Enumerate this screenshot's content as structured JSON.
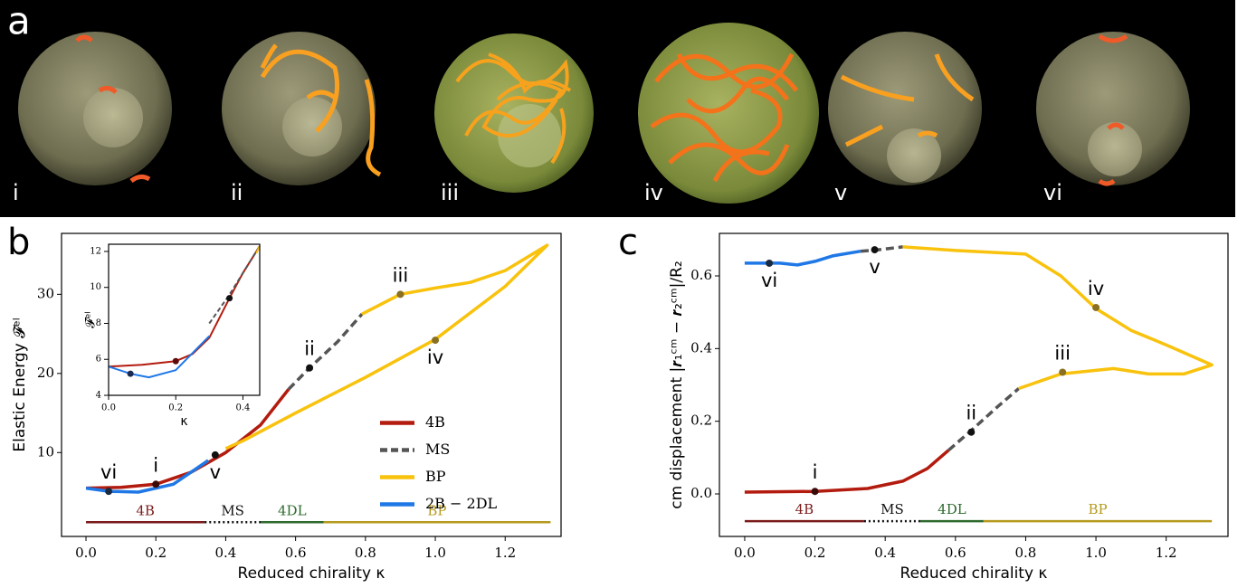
{
  "panel_a": {
    "label": "a",
    "image_labels": [
      "i",
      "ii",
      "iii",
      "iv",
      "v",
      "vi"
    ]
  },
  "chart_data": [
    {
      "type": "line",
      "panel_label": "b",
      "xlabel": "Reduced chirality κ",
      "ylabel": "Elastic Energy 𝓕ᵉˡ",
      "xlim": [
        -0.07,
        1.36
      ],
      "ylim": [
        -0.6,
        37.7
      ],
      "xticks": [
        {
          "value": 0,
          "label": "0.0"
        },
        0.2,
        0.4,
        0.6,
        0.8,
        {
          "value": 1,
          "label": "1.0"
        },
        1.2
      ],
      "yticks": [
        10,
        20,
        30
      ],
      "legend": "center right",
      "series": [
        {
          "name": "4B",
          "color": "#b31b0e",
          "style": "solid",
          "x": [
            0,
            0.1,
            0.2,
            0.3,
            0.4,
            0.5,
            0.58
          ],
          "values": [
            5.5,
            5.6,
            6.0,
            7.5,
            10,
            13.5,
            18
          ]
        },
        {
          "name": "MS",
          "color": "#555555",
          "style": "dashed",
          "x": [
            0.58,
            0.64,
            0.72,
            0.79
          ],
          "values": [
            18,
            20.7,
            24,
            27.5
          ]
        },
        {
          "name": "BP",
          "color": "#f8c20d",
          "style": "solid",
          "x": [
            0.79,
            0.9,
            1.0,
            1.1,
            1.2,
            1.32,
            1.2,
            1.0,
            0.8,
            0.6,
            0.45,
            0.4
          ],
          "values": [
            27.5,
            30,
            30.8,
            31.5,
            33,
            36.2,
            31,
            24.3,
            19.5,
            15,
            11.5,
            10.5
          ]
        },
        {
          "name": "2B − 2DL",
          "color": "#1f78e6",
          "style": "solid",
          "x": [
            0,
            0.065,
            0.15,
            0.25,
            0.3,
            0.35
          ],
          "values": [
            5.5,
            5.1,
            5.0,
            6.0,
            7.5,
            9
          ]
        }
      ],
      "annotations": [
        {
          "text": "vi",
          "x": 0.065,
          "y": 5.1,
          "color": "#1a2a40",
          "side": "above"
        },
        {
          "text": "i",
          "x": 0.2,
          "y": 6.0,
          "color": "#3a0c08",
          "side": "above"
        },
        {
          "text": "v",
          "x": 0.37,
          "y": 9.7,
          "color": "#111111",
          "side": "below"
        },
        {
          "text": "ii",
          "x": 0.64,
          "y": 20.7,
          "color": "#111111",
          "side": "above"
        },
        {
          "text": "iii",
          "x": 0.9,
          "y": 30,
          "color": "#8a7020",
          "side": "above"
        },
        {
          "text": "iv",
          "x": 1.0,
          "y": 24.2,
          "color": "#8a7020",
          "side": "below"
        }
      ],
      "phase_level": 1.2,
      "phases": [
        {
          "name": "4B",
          "start": 0,
          "end": 0.34,
          "color": "#7a1a1a",
          "style": "solid"
        },
        {
          "name": "MS",
          "start": 0.34,
          "end": 0.5,
          "color": "#111111",
          "style": "dotted"
        },
        {
          "name": "4DL",
          "start": 0.5,
          "end": 0.68,
          "color": "#2d6a2d",
          "style": "solid"
        },
        {
          "name": "BP",
          "start": 0.68,
          "end": 1.33,
          "color": "#b59a1d",
          "style": "solid"
        }
      ]
    },
    {
      "type": "line",
      "xlabel": "κ",
      "ylabel": "𝓕ᵉˡ",
      "xlim": [
        0,
        0.45
      ],
      "ylim": [
        4,
        12.4
      ],
      "xticks": [
        {
          "value": 0,
          "label": "0.0"
        },
        0.2,
        0.4
      ],
      "yticks": [
        4,
        6,
        8,
        10,
        12
      ],
      "series": [
        {
          "color": "#b31b0e",
          "style": "solid",
          "x": [
            0,
            0.1,
            0.2,
            0.25,
            0.3,
            0.36,
            0.4,
            0.45
          ],
          "values": [
            5.6,
            5.7,
            5.9,
            6.3,
            7.2,
            9.4,
            10.8,
            12.3
          ]
        },
        {
          "color": "#555555",
          "style": "dashed",
          "x": [
            0.3,
            0.36,
            0.45
          ],
          "values": [
            8.0,
            9.6,
            12.3
          ]
        },
        {
          "color": "#1f78e6",
          "style": "solid",
          "x": [
            0,
            0.065,
            0.12,
            0.2,
            0.3
          ],
          "values": [
            5.6,
            5.2,
            5.0,
            5.4,
            7.3
          ]
        },
        {
          "color": "#f8c20d",
          "style": "solid",
          "x": [
            0.44,
            0.45
          ],
          "values": [
            11.9,
            12.3
          ]
        }
      ],
      "points": [
        {
          "x": 0.065,
          "y": 5.2,
          "color": "#1a2a50"
        },
        {
          "x": 0.2,
          "y": 5.9,
          "color": "#5a0c08"
        },
        {
          "x": 0.36,
          "y": 9.4,
          "color": "#111111"
        }
      ]
    },
    {
      "type": "line",
      "panel_label": "c",
      "xlabel": "Reduced chirality κ",
      "ylabel": "cm displacement |𝒓₁ᶜᵐ − 𝒓₂ᶜᵐ|/R₂",
      "xlim": [
        -0.072,
        1.376
      ],
      "ylim": [
        -0.117,
        0.717
      ],
      "xticks": [
        {
          "value": 0,
          "label": "0.0"
        },
        0.2,
        0.4,
        0.6,
        0.8,
        {
          "value": 1,
          "label": "1.0"
        },
        1.2
      ],
      "yticks": [
        {
          "value": 0,
          "label": "0.0"
        },
        0.2,
        0.4,
        0.6
      ],
      "series": [
        {
          "color": "#b31b0e",
          "style": "solid",
          "x": [
            0,
            0.2,
            0.35,
            0.45,
            0.52,
            0.58
          ],
          "values": [
            0.005,
            0.007,
            0.015,
            0.035,
            0.07,
            0.12
          ]
        },
        {
          "color": "#555555",
          "style": "dashed",
          "x": [
            0.58,
            0.64,
            0.72,
            0.78,
            null,
            0.33,
            0.38,
            0.45
          ],
          "values": [
            0.12,
            0.17,
            0.24,
            0.29,
            null,
            0.668,
            0.672,
            0.68
          ]
        },
        {
          "color": "#f8c20d",
          "style": "solid",
          "x": [
            0.78,
            0.9,
            1.0,
            1.05,
            1.15,
            1.25,
            1.33,
            1.2,
            1.1,
            1.0,
            0.9,
            0.8,
            0.6,
            0.45
          ],
          "values": [
            0.29,
            0.33,
            0.34,
            0.345,
            0.33,
            0.33,
            0.355,
            0.41,
            0.45,
            0.51,
            0.6,
            0.66,
            0.67,
            0.68
          ]
        },
        {
          "color": "#1f78e6",
          "style": "solid",
          "x": [
            0,
            0.1,
            0.15,
            0.2,
            0.25,
            0.33
          ],
          "values": [
            0.635,
            0.635,
            0.63,
            0.64,
            0.655,
            0.668
          ]
        }
      ],
      "annotations": [
        {
          "text": "vi",
          "x": 0.07,
          "y": 0.635,
          "color": "#1a2a40",
          "side": "below"
        },
        {
          "text": "v",
          "x": 0.37,
          "y": 0.672,
          "color": "#111111",
          "side": "below"
        },
        {
          "text": "iv",
          "x": 1.0,
          "y": 0.513,
          "color": "#8a7020",
          "side": "above"
        },
        {
          "text": "iii",
          "x": 0.905,
          "y": 0.335,
          "color": "#8a7020",
          "side": "above"
        },
        {
          "text": "ii",
          "x": 0.645,
          "y": 0.17,
          "color": "#111111",
          "side": "above"
        },
        {
          "text": "i",
          "x": 0.2,
          "y": 0.007,
          "color": "#3a0c08",
          "side": "above"
        }
      ],
      "phase_level": -0.075,
      "phases": [
        {
          "name": "4B",
          "start": 0,
          "end": 0.34,
          "color": "#7a1a1a",
          "style": "solid"
        },
        {
          "name": "MS",
          "start": 0.34,
          "end": 0.5,
          "color": "#111111",
          "style": "dotted"
        },
        {
          "name": "4DL",
          "start": 0.5,
          "end": 0.68,
          "color": "#2d6a2d",
          "style": "solid"
        },
        {
          "name": "BP",
          "start": 0.68,
          "end": 1.33,
          "color": "#b59a1d",
          "style": "solid"
        }
      ]
    }
  ]
}
